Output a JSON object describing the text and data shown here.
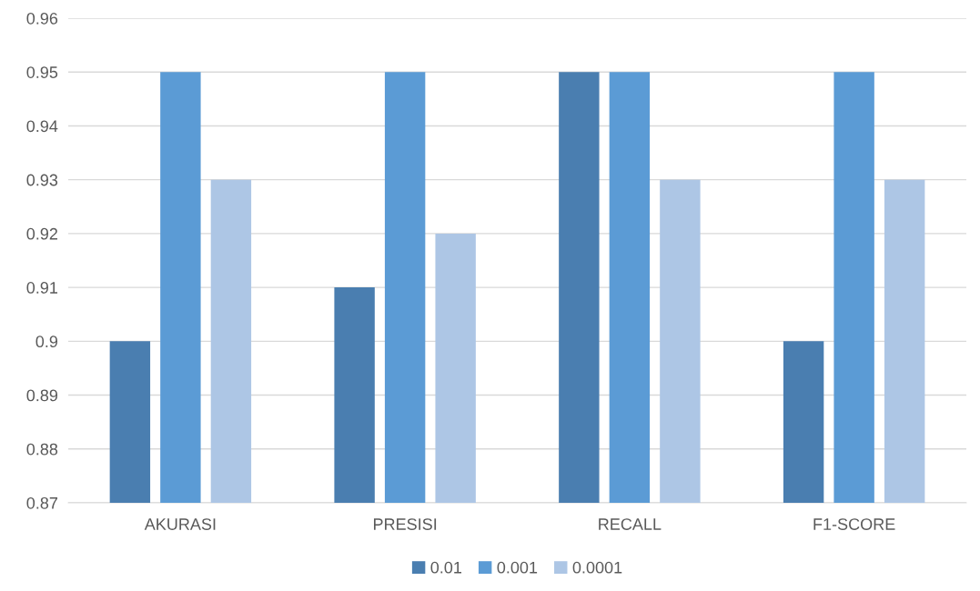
{
  "chart_data": {
    "type": "bar",
    "categories": [
      "AKURASI",
      "PRESISI",
      "RECALL",
      "F1-SCORE"
    ],
    "series": [
      {
        "name": "0.01",
        "color": "#4a7eb0",
        "values": [
          0.9,
          0.91,
          0.95,
          0.9
        ]
      },
      {
        "name": "0.001",
        "color": "#5b9bd5",
        "values": [
          0.95,
          0.95,
          0.95,
          0.95
        ]
      },
      {
        "name": "0.0001",
        "color": "#adc6e5",
        "values": [
          0.93,
          0.92,
          0.93,
          0.93
        ]
      }
    ],
    "ylim": [
      0.87,
      0.96
    ],
    "yticks": [
      0.87,
      0.88,
      0.89,
      0.9,
      0.91,
      0.92,
      0.93,
      0.94,
      0.95,
      0.96
    ],
    "grid": "y",
    "legend": "bottom"
  }
}
